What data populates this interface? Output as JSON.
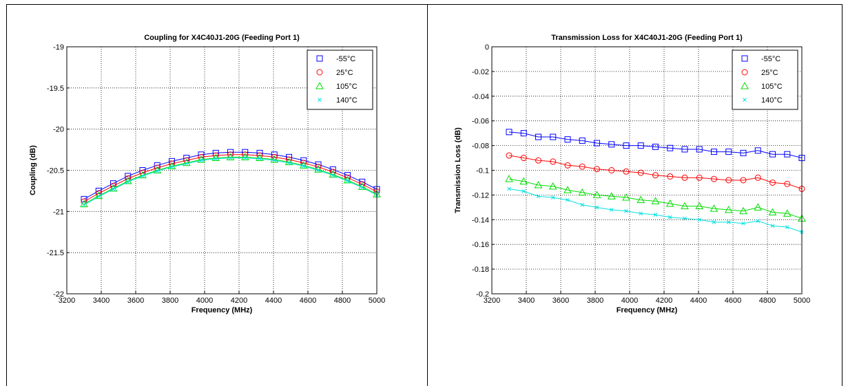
{
  "chart_data": [
    {
      "type": "line",
      "title": "Coupling for X4C40J1-20G (Feeding Port 1)",
      "x_label": "Frequency (MHz)",
      "y_label": "Coupling (dB)",
      "x": [
        3300,
        3385,
        3470,
        3555,
        3640,
        3725,
        3810,
        3895,
        3980,
        4065,
        4150,
        4235,
        4320,
        4405,
        4490,
        4575,
        4660,
        4745,
        4830,
        4915,
        5000
      ],
      "series": [
        {
          "name": "-55°C",
          "color": "#0000ff",
          "marker": "square",
          "values": [
            -20.85,
            -20.75,
            -20.66,
            -20.57,
            -20.5,
            -20.44,
            -20.39,
            -20.35,
            -20.31,
            -20.29,
            -20.28,
            -20.28,
            -20.29,
            -20.31,
            -20.34,
            -20.38,
            -20.43,
            -20.49,
            -20.56,
            -20.64,
            -20.73
          ]
        },
        {
          "name": "25°C",
          "color": "#ff0000",
          "marker": "circle",
          "values": [
            -20.88,
            -20.78,
            -20.69,
            -20.6,
            -20.53,
            -20.47,
            -20.42,
            -20.38,
            -20.34,
            -20.32,
            -20.31,
            -20.31,
            -20.32,
            -20.34,
            -20.37,
            -20.41,
            -20.46,
            -20.52,
            -20.59,
            -20.67,
            -20.76
          ]
        },
        {
          "name": "105°C",
          "color": "#00dd00",
          "marker": "triangle",
          "values": [
            -20.91,
            -20.81,
            -20.72,
            -20.63,
            -20.56,
            -20.5,
            -20.45,
            -20.41,
            -20.37,
            -20.35,
            -20.34,
            -20.34,
            -20.35,
            -20.37,
            -20.4,
            -20.44,
            -20.49,
            -20.55,
            -20.62,
            -20.7,
            -20.79
          ]
        },
        {
          "name": "140°C",
          "color": "#00e0e0",
          "marker": "x",
          "values": [
            -20.92,
            -20.82,
            -20.73,
            -20.64,
            -20.57,
            -20.51,
            -20.46,
            -20.42,
            -20.38,
            -20.36,
            -20.35,
            -20.35,
            -20.36,
            -20.38,
            -20.41,
            -20.45,
            -20.5,
            -20.56,
            -20.63,
            -20.71,
            -20.8
          ]
        }
      ],
      "xlim": [
        3200,
        5000
      ],
      "xticks": [
        3200,
        3400,
        3600,
        3800,
        4000,
        4200,
        4400,
        4600,
        4800,
        5000
      ],
      "ylim": [
        -22,
        -19
      ],
      "yticks": [
        -22,
        -21.5,
        -21,
        -20.5,
        -20,
        -19.5,
        -19
      ],
      "grid": true,
      "legend": "top-right"
    },
    {
      "type": "line",
      "title": "Transmission Loss for X4C40J1-20G (Feeding Port 1)",
      "x_label": "Frequency (MHz)",
      "y_label": "Transmission Loss (dB)",
      "x": [
        3300,
        3385,
        3470,
        3555,
        3640,
        3725,
        3810,
        3895,
        3980,
        4065,
        4150,
        4235,
        4320,
        4405,
        4490,
        4575,
        4660,
        4745,
        4830,
        4915,
        5000
      ],
      "series": [
        {
          "name": "-55°C",
          "color": "#0000ff",
          "marker": "square",
          "values": [
            -0.069,
            -0.07,
            -0.073,
            -0.073,
            -0.075,
            -0.076,
            -0.078,
            -0.079,
            -0.08,
            -0.08,
            -0.081,
            -0.082,
            -0.083,
            -0.083,
            -0.085,
            -0.085,
            -0.086,
            -0.084,
            -0.087,
            -0.087,
            -0.09
          ]
        },
        {
          "name": "25°C",
          "color": "#ff0000",
          "marker": "circle",
          "values": [
            -0.088,
            -0.09,
            -0.092,
            -0.093,
            -0.096,
            -0.097,
            -0.099,
            -0.1,
            -0.101,
            -0.102,
            -0.104,
            -0.105,
            -0.106,
            -0.106,
            -0.107,
            -0.108,
            -0.108,
            -0.106,
            -0.11,
            -0.111,
            -0.115
          ]
        },
        {
          "name": "105°C",
          "color": "#00dd00",
          "marker": "triangle",
          "values": [
            -0.107,
            -0.109,
            -0.112,
            -0.113,
            -0.116,
            -0.118,
            -0.12,
            -0.121,
            -0.122,
            -0.124,
            -0.125,
            -0.127,
            -0.129,
            -0.129,
            -0.131,
            -0.132,
            -0.133,
            -0.13,
            -0.134,
            -0.135,
            -0.139
          ]
        },
        {
          "name": "140°C",
          "color": "#00e0e0",
          "marker": "x",
          "values": [
            -0.115,
            -0.117,
            -0.121,
            -0.122,
            -0.124,
            -0.128,
            -0.13,
            -0.132,
            -0.133,
            -0.135,
            -0.136,
            -0.138,
            -0.139,
            -0.14,
            -0.142,
            -0.142,
            -0.143,
            -0.141,
            -0.145,
            -0.146,
            -0.15
          ]
        }
      ],
      "xlim": [
        3200,
        5000
      ],
      "xticks": [
        3200,
        3400,
        3600,
        3800,
        4000,
        4200,
        4400,
        4600,
        4800,
        5000
      ],
      "ylim": [
        -0.2,
        0
      ],
      "yticks": [
        -0.2,
        -0.18,
        -0.16,
        -0.14,
        -0.12,
        -0.1,
        -0.08,
        -0.06,
        -0.04,
        -0.02,
        0
      ],
      "grid": true,
      "legend": "top-right"
    }
  ]
}
